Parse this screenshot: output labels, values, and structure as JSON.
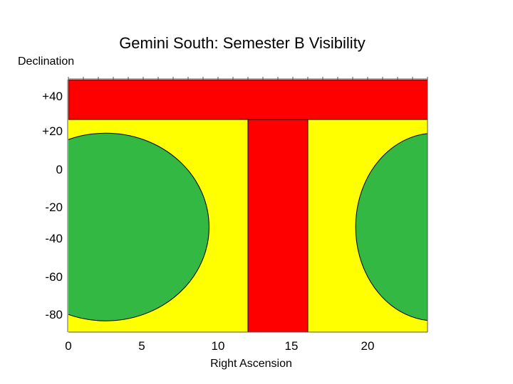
{
  "chart_data": {
    "type": "area",
    "title": "Gemini South: Semester B Visibility",
    "xlabel": "Right Ascension",
    "ylabel": "Declination",
    "xlim": [
      0,
      24
    ],
    "x_ticks": [
      "0",
      "5",
      "10",
      "15",
      "20"
    ],
    "y_ticks": [
      "+40",
      "+20",
      "0",
      "-20",
      "-40",
      "-60",
      "-80"
    ],
    "grid": false,
    "colors": {
      "not_observable": "#ff0000",
      "partially_observable": "#ffff00",
      "fully_observable": "#33b843",
      "outline": "#000000"
    },
    "regions": [
      {
        "label": "band",
        "color": "not_observable",
        "ra_range": [
          0,
          24
        ],
        "dec_range": [
          28,
          48
        ]
      },
      {
        "label": "column",
        "color": "not_observable",
        "ra_range": [
          12,
          16
        ],
        "dec_range": [
          -90,
          28
        ]
      },
      {
        "label": "background",
        "color": "partially_observable",
        "ra_range": [
          0,
          24
        ],
        "dec_range": [
          -90,
          28
        ]
      },
      {
        "label": "left lobe",
        "color": "fully_observable",
        "center_ra": 2.5,
        "center_dec": -30,
        "ra_radius": 6.9,
        "dec_radius": 50
      },
      {
        "label": "right lobe",
        "color": "fully_observable",
        "center_ra": 24.5,
        "center_dec": -30,
        "ra_radius": 5.3,
        "dec_radius": 50
      }
    ]
  }
}
